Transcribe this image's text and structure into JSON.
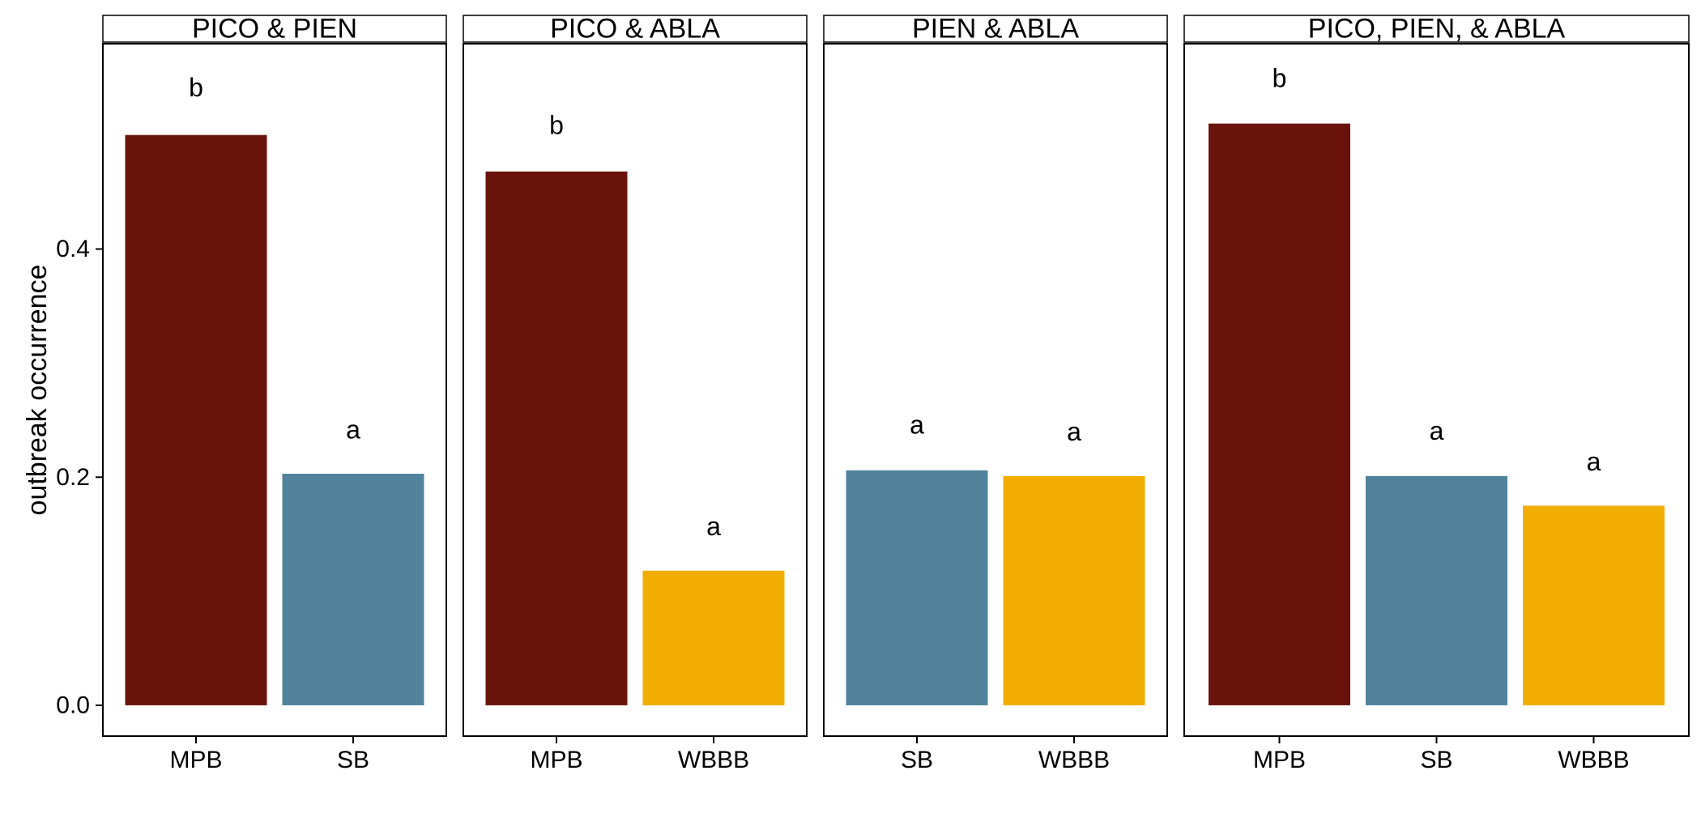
{
  "chart_data": {
    "type": "bar",
    "ylabel": "outbreak occurrence",
    "xlabel": "",
    "ylim": [
      -0.027,
      0.58
    ],
    "yticks": [
      0.0,
      0.2,
      0.4
    ],
    "ytick_labels": [
      "0.0",
      "0.2",
      "0.4"
    ],
    "grid": false,
    "legend": "none",
    "colors": {
      "MPB": "#6a130d",
      "SB": "#50829c",
      "WBBB": "#f2ad02"
    },
    "panels": [
      {
        "title": "PICO & PIEN",
        "categories": [
          "MPB",
          "SB"
        ],
        "values": [
          0.5,
          0.203
        ],
        "labels": [
          "b",
          "a"
        ],
        "label_y": [
          0.54,
          0.24
        ]
      },
      {
        "title": "PICO & ABLA",
        "categories": [
          "MPB",
          "WBBB"
        ],
        "values": [
          0.468,
          0.118
        ],
        "labels": [
          "b",
          "a"
        ],
        "label_y": [
          0.507,
          0.155
        ]
      },
      {
        "title": "PIEN & ABLA",
        "categories": [
          "SB",
          "WBBB"
        ],
        "values": [
          0.206,
          0.201
        ],
        "labels": [
          "a",
          "a"
        ],
        "label_y": [
          0.244,
          0.238
        ]
      },
      {
        "title": "PICO, PIEN, & ABLA",
        "categories": [
          "MPB",
          "SB",
          "WBBB"
        ],
        "values": [
          0.51,
          0.201,
          0.175
        ],
        "labels": [
          "b",
          "a",
          "a"
        ],
        "label_y": [
          0.548,
          0.239,
          0.212
        ]
      }
    ]
  }
}
